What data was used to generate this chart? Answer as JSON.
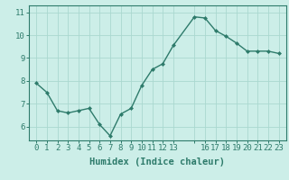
{
  "x": [
    0,
    1,
    2,
    3,
    4,
    5,
    6,
    7,
    8,
    9,
    10,
    11,
    12,
    13,
    15,
    16,
    17,
    18,
    19,
    20,
    21,
    22,
    23
  ],
  "y": [
    7.9,
    7.5,
    6.7,
    6.6,
    6.7,
    6.8,
    6.1,
    5.6,
    6.55,
    6.8,
    7.8,
    8.5,
    8.75,
    9.55,
    10.8,
    10.75,
    10.2,
    9.95,
    9.65,
    9.3,
    9.3,
    9.3,
    9.2
  ],
  "line_color": "#2e7b6b",
  "marker": "D",
  "marker_size": 2.0,
  "bg_color": "#cceee8",
  "grid_color": "#aad8d0",
  "xlabel": "Humidex (Indice chaleur)",
  "xlabel_fontsize": 7.5,
  "ylim": [
    5.4,
    11.3
  ],
  "yticks": [
    6,
    7,
    8,
    9,
    10,
    11
  ],
  "xticks": [
    0,
    1,
    2,
    3,
    4,
    5,
    6,
    7,
    8,
    9,
    10,
    11,
    12,
    13,
    15,
    16,
    17,
    18,
    19,
    20,
    21,
    22,
    23
  ],
  "xtick_labels": [
    "0",
    "1",
    "2",
    "3",
    "4",
    "5",
    "6",
    "7",
    "8",
    "9",
    "10",
    "11",
    "12",
    "13",
    "",
    "16",
    "17",
    "18",
    "19",
    "20",
    "21",
    "22",
    "23"
  ],
  "tick_fontsize": 6.5,
  "line_width": 1.0
}
